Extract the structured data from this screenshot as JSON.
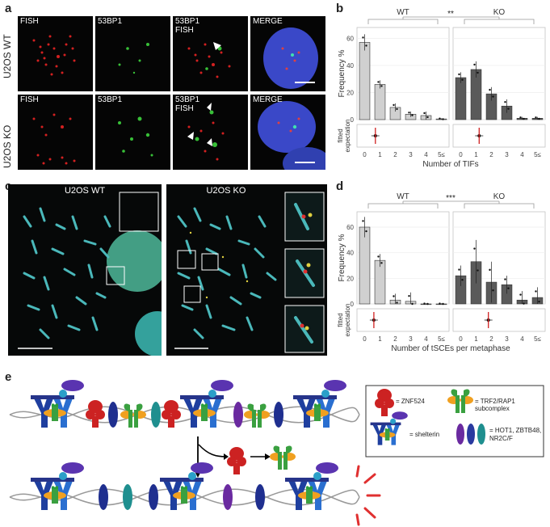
{
  "panel_labels": {
    "a": "a",
    "b": "b",
    "c": "c",
    "d": "d",
    "e": "e"
  },
  "panel_a": {
    "row_labels": [
      "U2OS WT",
      "U2OS KO"
    ],
    "tile_labels": [
      "FISH",
      "53BP1",
      "53BP1\nFISH",
      "MERGE"
    ]
  },
  "panel_c": {
    "labels": [
      "U2OS WT",
      "U2OS KO"
    ]
  },
  "panel_e": {
    "legend": {
      "znf524": "= ZNF524",
      "trf2": "= TRF2/RAP1 subcomplex",
      "shelterin": "= shelterin",
      "hot1": "= HOT1, ZBTB48,\nNR2C/F"
    }
  },
  "chart_data": [
    {
      "panel": "b",
      "type": "bar",
      "groups": [
        "WT",
        "KO"
      ],
      "significance": "**",
      "categories": [
        "0",
        "1",
        "2",
        "3",
        "4",
        "5≤"
      ],
      "series": [
        {
          "name": "WT",
          "values": [
            57,
            26,
            9,
            4,
            3,
            0.5
          ],
          "errors": [
            6,
            3,
            3,
            2,
            3,
            0.5
          ],
          "color": "#d0d0d0"
        },
        {
          "name": "KO",
          "values": [
            31,
            37,
            19,
            10,
            1,
            1
          ],
          "errors": [
            4,
            6,
            5,
            5,
            1,
            1
          ],
          "color": "#5a5a5a"
        }
      ],
      "ylabel": "Frequency %",
      "yticks": [
        0,
        20,
        40,
        60
      ],
      "ylim": [
        0,
        68
      ],
      "xlabel": "Number of TIFs",
      "expectation_label": "fitted\nexpectation",
      "expectation": {
        "WT": 0.7,
        "KO": 1.2
      }
    },
    {
      "panel": "d",
      "type": "bar",
      "groups": [
        "WT",
        "KO"
      ],
      "significance": "***",
      "categories": [
        "0",
        "1",
        "2",
        "3",
        "4",
        "5≤"
      ],
      "series": [
        {
          "name": "WT",
          "values": [
            60,
            34,
            3,
            2,
            0,
            0
          ],
          "errors": [
            8,
            5,
            5,
            7,
            0.5,
            0.5
          ],
          "color": "#d0d0d0"
        },
        {
          "name": "KO",
          "values": [
            22,
            33,
            17,
            15,
            3,
            5
          ],
          "errors": [
            8,
            17,
            16,
            7,
            7,
            8
          ],
          "color": "#5a5a5a"
        }
      ],
      "ylabel": "Frequency %",
      "yticks": [
        0,
        20,
        40,
        60
      ],
      "ylim": [
        0,
        72
      ],
      "xlabel": "Number of tSCEs per metaphase",
      "expectation_label": "fitted\nexpectation",
      "expectation": {
        "WT": 0.6,
        "KO": 1.8
      }
    }
  ]
}
